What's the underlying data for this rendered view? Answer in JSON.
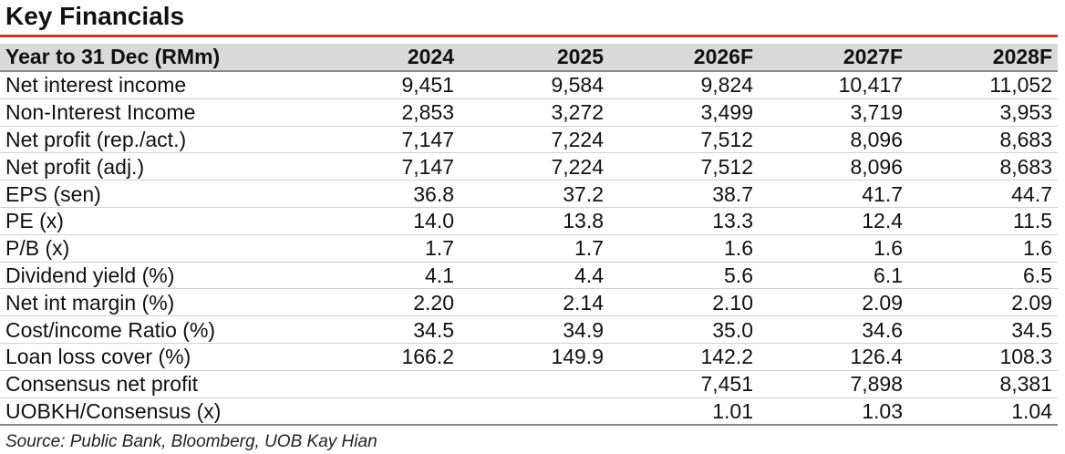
{
  "title": "Key Financials",
  "table": {
    "header": [
      "Year to 31 Dec (RMm)",
      "2024",
      "2025",
      "2026F",
      "2027F",
      "2028F"
    ],
    "rows": [
      [
        "Net interest income",
        "9,451",
        "9,584",
        "9,824",
        "10,417",
        "11,052"
      ],
      [
        "Non-Interest Income",
        "2,853",
        "3,272",
        "3,499",
        "3,719",
        "3,953"
      ],
      [
        "Net profit (rep./act.)",
        "7,147",
        "7,224",
        "7,512",
        "8,096",
        "8,683"
      ],
      [
        "Net profit (adj.)",
        "7,147",
        "7,224",
        "7,512",
        "8,096",
        "8,683"
      ],
      [
        "EPS (sen)",
        "36.8",
        "37.2",
        "38.7",
        "41.7",
        "44.7"
      ],
      [
        "PE (x)",
        "14.0",
        "13.8",
        "13.3",
        "12.4",
        "11.5"
      ],
      [
        "P/B (x)",
        "1.7",
        "1.7",
        "1.6",
        "1.6",
        "1.6"
      ],
      [
        "Dividend yield (%)",
        "4.1",
        "4.4",
        "5.6",
        "6.1",
        "6.5"
      ],
      [
        "Net int margin (%)",
        "2.20",
        "2.14",
        "2.10",
        "2.09",
        "2.09"
      ],
      [
        "Cost/income Ratio (%)",
        "34.5",
        "34.9",
        "35.0",
        "34.6",
        "34.5"
      ],
      [
        "Loan loss cover (%)",
        "166.2",
        "149.9",
        "142.2",
        "126.4",
        "108.3"
      ],
      [
        "Consensus net profit",
        "",
        "",
        "7,451",
        "7,898",
        "8,381"
      ],
      [
        "UOBKH/Consensus (x)",
        "",
        "",
        "1.01",
        "1.03",
        "1.04"
      ]
    ]
  },
  "source": "Source: Public Bank, Bloomberg, UOB Kay Hian",
  "colors": {
    "accent_rule": "#c0392b",
    "header_bg": "#d9d9d9"
  }
}
